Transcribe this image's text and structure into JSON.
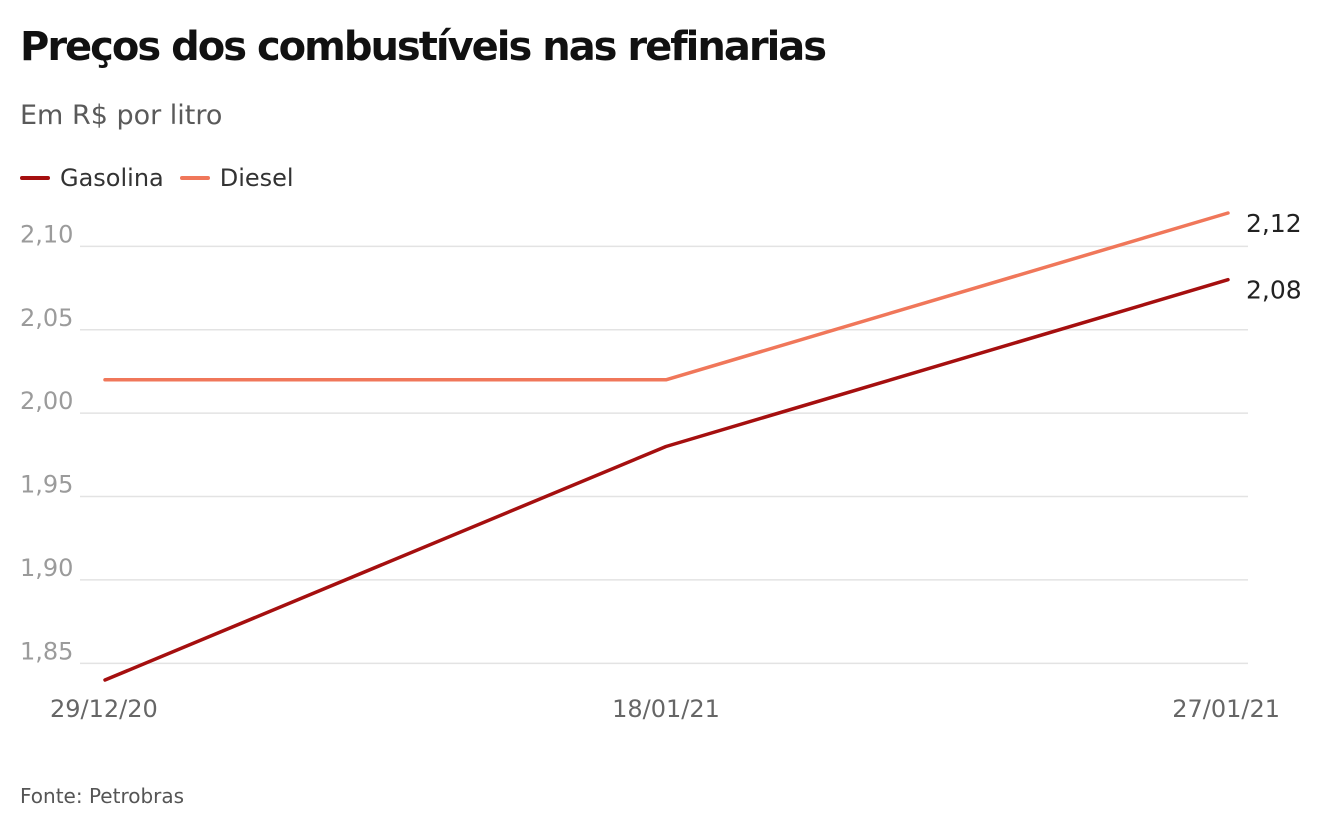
{
  "colors": {
    "gasolina": "#a50f0f",
    "diesel": "#f0775a",
    "grid": "#e3e3e3"
  },
  "chart_data": {
    "type": "line",
    "title": "Preços dos combustíveis nas refinarias",
    "subtitle": "Em R$ por litro",
    "x": [
      "29/12/20",
      "18/01/21",
      "27/01/21"
    ],
    "series": [
      {
        "name": "Gasolina",
        "values": [
          1.84,
          1.98,
          2.08
        ],
        "color": "#a50f0f"
      },
      {
        "name": "Diesel",
        "values": [
          2.02,
          2.02,
          2.12
        ],
        "color": "#f0775a"
      }
    ],
    "end_labels": [
      "2,08",
      "2,12"
    ],
    "y_ticks": [
      "1,85",
      "1,90",
      "1,95",
      "2,00",
      "2,05",
      "2,10"
    ],
    "ylim": [
      1.84,
      2.12
    ],
    "grid": true,
    "legend": "top-left",
    "source": "Fonte: Petrobras"
  }
}
